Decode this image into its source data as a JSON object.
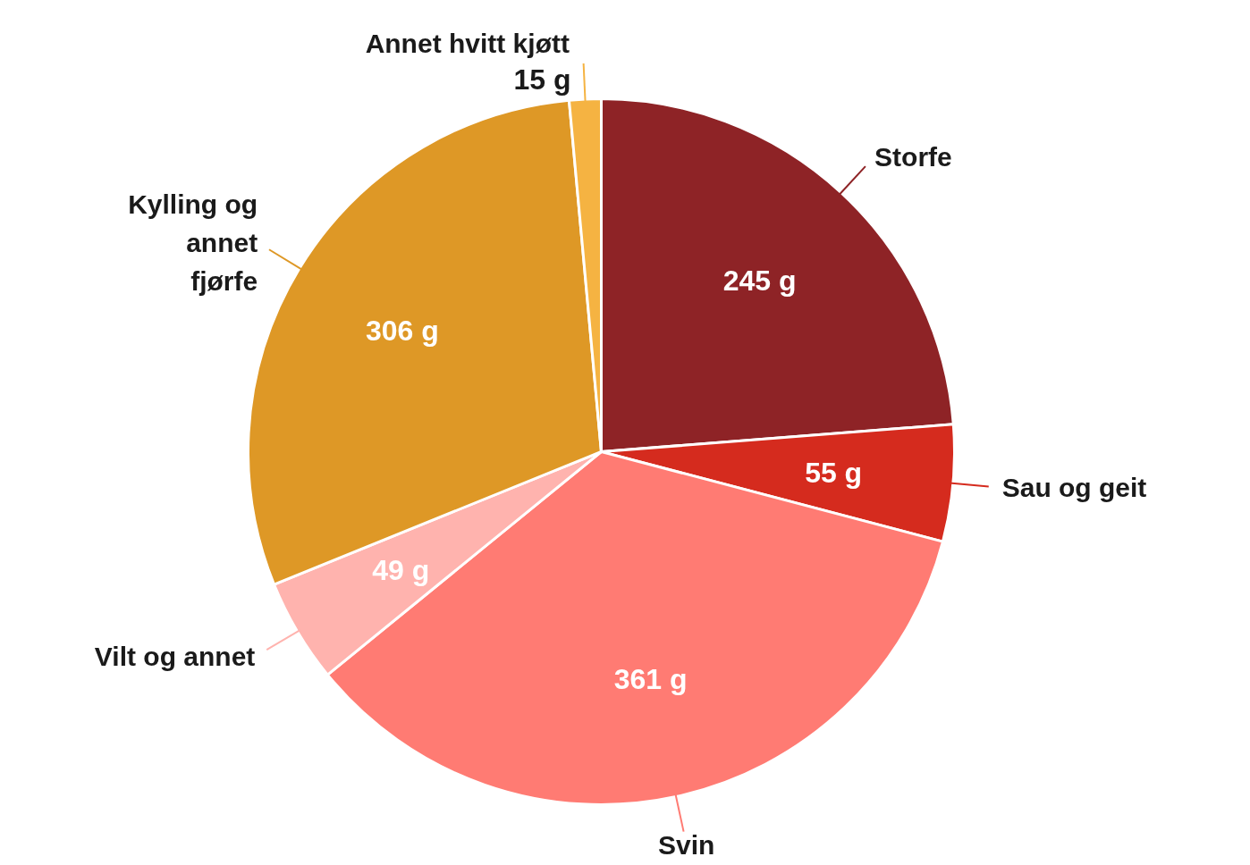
{
  "chart_data": {
    "type": "pie",
    "categories": [
      "Storfe",
      "Sau og geit",
      "Svin",
      "Vilt og annet",
      "Kylling og annet fjørfe",
      "Annet hvitt kjøtt"
    ],
    "values": [
      245,
      55,
      361,
      49,
      306,
      15
    ],
    "colors": [
      "#8e2326",
      "#d52b1e",
      "#ff7b73",
      "#ffb3ae",
      "#de9826",
      "#f5b342"
    ],
    "value_labels": [
      "245 g",
      "55 g",
      "361 g",
      "49 g",
      "306 g",
      "15 g"
    ]
  }
}
